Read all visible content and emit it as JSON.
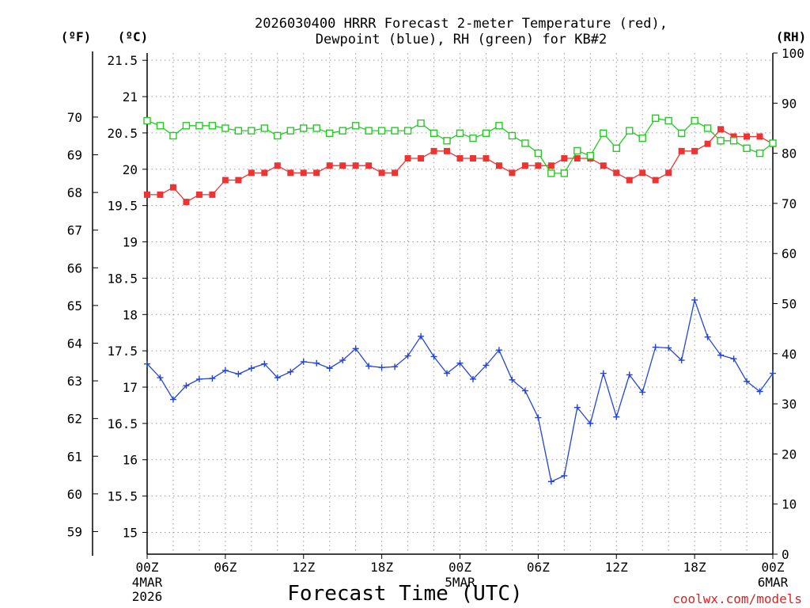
{
  "chart_data": {
    "type": "line",
    "title_line1": "2026030400 HRRR Forecast 2-meter Temperature (red),",
    "title_line2": "Dewpoint (blue), RH (green) for KB#2",
    "xlabel": "Forecast Time (UTC)",
    "credit": "coolwx.com/models",
    "axes": {
      "left_outer": {
        "label": "(ºF)",
        "range": [
          58.4,
          71.7
        ],
        "ticks": [
          59,
          60,
          61,
          62,
          63,
          64,
          65,
          66,
          67,
          68,
          69,
          70
        ]
      },
      "left_inner": {
        "label": "(ºC)",
        "range": [
          14.7,
          21.6
        ],
        "ticks": [
          "15",
          "15.5",
          "16",
          "16.5",
          "17",
          "17.5",
          "18",
          "18.5",
          "19",
          "19.5",
          "20",
          "20.5",
          "21",
          "21.5"
        ]
      },
      "right": {
        "label": "(RH)",
        "range": [
          0,
          100
        ],
        "ticks": [
          0,
          10,
          20,
          30,
          40,
          50,
          60,
          70,
          80,
          90,
          100
        ]
      }
    },
    "x_range_hours": [
      0,
      48
    ],
    "x_ticks": [
      {
        "label": "00Z",
        "label2": "4MAR",
        "label3": "2026",
        "hour": 0
      },
      {
        "label": "06Z",
        "hour": 6
      },
      {
        "label": "12Z",
        "hour": 12
      },
      {
        "label": "18Z",
        "hour": 18
      },
      {
        "label": "00Z",
        "label2": "5MAR",
        "hour": 24
      },
      {
        "label": "06Z",
        "hour": 30
      },
      {
        "label": "12Z",
        "hour": 36
      },
      {
        "label": "18Z",
        "hour": 42
      },
      {
        "label": "00Z",
        "label2": "6MAR",
        "hour": 48
      }
    ],
    "grid": "dotted",
    "series": [
      {
        "name": "Temperature",
        "unit": "ºC",
        "color": "#ee3333",
        "marker": "filled-square",
        "values": [
          19.65,
          19.65,
          19.75,
          19.55,
          19.65,
          19.65,
          19.85,
          19.85,
          19.95,
          19.95,
          20.05,
          19.95,
          19.95,
          19.95,
          20.05,
          20.05,
          20.05,
          20.05,
          19.95,
          19.95,
          20.15,
          20.15,
          20.25,
          20.25,
          20.15,
          20.15,
          20.15,
          20.05,
          19.95,
          20.05,
          20.05,
          20.05,
          20.15,
          20.15,
          20.15,
          20.05,
          19.95,
          19.85,
          19.95,
          19.85,
          19.95,
          20.25,
          20.25,
          20.35,
          20.55,
          20.45,
          20.45,
          20.45,
          20.35
        ]
      },
      {
        "name": "Dewpoint",
        "unit": "ºC",
        "color": "#2244dd",
        "marker": "plus",
        "values": [
          17.32,
          17.13,
          16.83,
          17.02,
          17.11,
          17.12,
          17.23,
          17.18,
          17.26,
          17.32,
          17.13,
          17.21,
          17.35,
          17.33,
          17.26,
          17.37,
          17.53,
          17.29,
          17.27,
          17.28,
          17.43,
          17.7,
          17.42,
          17.19,
          17.33,
          17.11,
          17.3,
          17.51,
          17.1,
          16.95,
          16.58,
          15.7,
          15.78,
          16.72,
          16.5,
          17.19,
          16.59,
          17.17,
          16.93,
          17.55,
          17.54,
          17.37,
          18.2,
          17.69,
          17.44,
          17.39,
          17.08,
          16.94,
          17.19
        ]
      },
      {
        "name": "RH",
        "unit": "%",
        "color": "#22cc22",
        "marker": "open-square",
        "values": [
          86.5,
          85.5,
          83.5,
          85.5,
          85.5,
          85.5,
          85,
          84.5,
          84.5,
          85,
          83.5,
          84.5,
          85,
          85,
          84,
          84.5,
          85.5,
          84.5,
          84.5,
          84.5,
          84.5,
          86,
          84,
          82.5,
          84,
          83,
          84,
          85.5,
          83.5,
          82,
          80,
          76,
          76,
          80.5,
          79.5,
          84,
          81,
          84.5,
          83,
          87,
          86.5,
          84,
          86.5,
          85,
          82.5,
          82.5,
          81,
          80,
          82
        ]
      }
    ]
  }
}
